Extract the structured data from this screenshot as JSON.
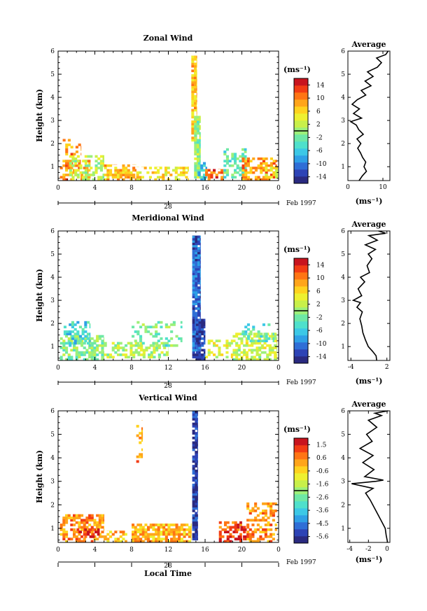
{
  "chart_data": [
    {
      "type": "heatmap",
      "title": "Zonal Wind",
      "ylabel": "Height (km)",
      "xticks": [
        "0",
        "4",
        "8",
        "12",
        "16",
        "20",
        "0"
      ],
      "yticks": [
        "1",
        "2",
        "3",
        "4",
        "5",
        "6"
      ],
      "xlim": [
        0,
        24
      ],
      "ylim": [
        0.4,
        6
      ],
      "date_label": "28",
      "month_label": "Feb 1997",
      "colorbar": {
        "label": "(ms⁻¹)",
        "ticks": [
          "14",
          "10",
          "6",
          "2",
          "-2",
          "-6",
          "-10",
          "-14"
        ],
        "range": [
          -16,
          16
        ]
      },
      "average": {
        "title": "Average",
        "xlabel": "(ms⁻¹)",
        "xticks": [
          "0",
          "10"
        ],
        "yticks": [
          "1",
          "2",
          "3",
          "4",
          "5",
          "6"
        ],
        "xlim": [
          0,
          12
        ],
        "ylim": [
          0.4,
          6
        ],
        "profile": [
          [
            3.2,
            0.4
          ],
          [
            4.1,
            0.6
          ],
          [
            5.3,
            0.8
          ],
          [
            4.6,
            1.0
          ],
          [
            5.1,
            1.2
          ],
          [
            4.2,
            1.4
          ],
          [
            3.6,
            1.6
          ],
          [
            2.8,
            1.8
          ],
          [
            3.7,
            2.0
          ],
          [
            2.6,
            2.2
          ],
          [
            4.4,
            2.4
          ],
          [
            3.1,
            2.6
          ],
          [
            2.4,
            2.8
          ],
          [
            0.8,
            2.95
          ],
          [
            3.9,
            3.1
          ],
          [
            1.6,
            3.3
          ],
          [
            3.3,
            3.5
          ],
          [
            1.2,
            3.7
          ],
          [
            2.7,
            3.9
          ],
          [
            5.1,
            4.1
          ],
          [
            3.8,
            4.3
          ],
          [
            6.6,
            4.5
          ],
          [
            4.9,
            4.7
          ],
          [
            7.2,
            4.9
          ],
          [
            5.6,
            5.1
          ],
          [
            8.4,
            5.3
          ],
          [
            9.6,
            5.5
          ],
          [
            8.2,
            5.7
          ],
          [
            10.8,
            5.85
          ],
          [
            11.5,
            6.0
          ]
        ]
      },
      "patches": [
        {
          "x0": 0.2,
          "x1": 3.5,
          "y0": 0.4,
          "y1": 1.3,
          "value": 9,
          "density": 0.55
        },
        {
          "x0": 1.2,
          "x1": 5.0,
          "y0": 0.4,
          "y1": 1.5,
          "value": 2,
          "density": 0.5
        },
        {
          "x0": 5.0,
          "x1": 8.5,
          "y0": 0.4,
          "y1": 1.1,
          "value": 7,
          "density": 0.5
        },
        {
          "x0": 8.5,
          "x1": 14.2,
          "y0": 0.4,
          "y1": 1.0,
          "value": 5,
          "density": 0.45
        },
        {
          "x0": 0.5,
          "x1": 2.5,
          "y0": 1.5,
          "y1": 2.2,
          "value": 10,
          "density": 0.25
        },
        {
          "x0": 14.5,
          "x1": 15.1,
          "y0": 2.0,
          "y1": 5.8,
          "value": 7,
          "density": 0.9
        },
        {
          "x0": 14.8,
          "x1": 15.5,
          "y0": 0.5,
          "y1": 3.2,
          "value": 0,
          "density": 0.9
        },
        {
          "x0": 15.2,
          "x1": 16.2,
          "y0": 0.4,
          "y1": 1.2,
          "value": -6,
          "density": 0.6
        },
        {
          "x0": 16.0,
          "x1": 18.0,
          "y0": 0.4,
          "y1": 0.9,
          "value": 11,
          "density": 0.5
        },
        {
          "x0": 18.0,
          "x1": 20.5,
          "y0": 0.5,
          "y1": 1.8,
          "value": -3,
          "density": 0.55
        },
        {
          "x0": 20.0,
          "x1": 23.8,
          "y0": 0.4,
          "y1": 1.4,
          "value": 9,
          "density": 0.5
        },
        {
          "x0": 22.5,
          "x1": 23.9,
          "y0": 0.5,
          "y1": 1.0,
          "value": 5,
          "density": 0.6
        }
      ]
    },
    {
      "type": "heatmap",
      "title": "Meridional Wind",
      "ylabel": "Height (km)",
      "xticks": [
        "0",
        "4",
        "8",
        "12",
        "16",
        "20",
        "0"
      ],
      "yticks": [
        "1",
        "2",
        "3",
        "4",
        "5",
        "6"
      ],
      "xlim": [
        0,
        24
      ],
      "ylim": [
        0.4,
        6
      ],
      "date_label": "28",
      "month_label": "Feb 1997",
      "colorbar": {
        "label": "(ms⁻¹)",
        "ticks": [
          "14",
          "10",
          "6",
          "2",
          "-2",
          "-6",
          "-10",
          "-14"
        ],
        "range": [
          -16,
          16
        ]
      },
      "average": {
        "title": "Average",
        "xlabel": "(ms⁻¹)",
        "xticks": [
          "-4",
          "2"
        ],
        "yticks": [
          "1",
          "2",
          "3",
          "4",
          "5",
          "6"
        ],
        "xlim": [
          -4.5,
          2.5
        ],
        "ylim": [
          0.4,
          6
        ],
        "profile": [
          [
            0.3,
            0.4
          ],
          [
            0.2,
            0.6
          ],
          [
            -0.4,
            0.8
          ],
          [
            -1.1,
            1.0
          ],
          [
            -1.6,
            1.3
          ],
          [
            -2.0,
            1.6
          ],
          [
            -2.2,
            1.9
          ],
          [
            -2.5,
            2.2
          ],
          [
            -2.1,
            2.5
          ],
          [
            -3.0,
            2.7
          ],
          [
            -2.4,
            2.9
          ],
          [
            -3.6,
            3.0
          ],
          [
            -2.2,
            3.2
          ],
          [
            -2.8,
            3.5
          ],
          [
            -1.7,
            3.8
          ],
          [
            -2.4,
            4.0
          ],
          [
            -0.9,
            4.2
          ],
          [
            -1.3,
            4.5
          ],
          [
            -0.5,
            4.8
          ],
          [
            -1.1,
            5.0
          ],
          [
            0.1,
            5.2
          ],
          [
            -1.6,
            5.4
          ],
          [
            0.4,
            5.6
          ],
          [
            -1.0,
            5.8
          ],
          [
            1.8,
            5.9
          ],
          [
            0.6,
            6.0
          ]
        ]
      },
      "patches": [
        {
          "x0": 0.2,
          "x1": 5.0,
          "y0": 0.4,
          "y1": 1.5,
          "value": -1,
          "density": 0.6
        },
        {
          "x0": 0.6,
          "x1": 3.5,
          "y0": 1.0,
          "y1": 2.1,
          "value": -5,
          "density": 0.4
        },
        {
          "x0": 5.0,
          "x1": 12.0,
          "y0": 0.5,
          "y1": 1.2,
          "value": 1,
          "density": 0.55
        },
        {
          "x0": 8.0,
          "x1": 13.5,
          "y0": 1.0,
          "y1": 2.1,
          "value": -2,
          "density": 0.3
        },
        {
          "x0": 14.6,
          "x1": 15.5,
          "y0": 0.5,
          "y1": 5.8,
          "value": -11,
          "density": 0.95
        },
        {
          "x0": 15.0,
          "x1": 16.0,
          "y0": 0.4,
          "y1": 2.2,
          "value": -13,
          "density": 0.8
        },
        {
          "x0": 16.0,
          "x1": 19.0,
          "y0": 0.5,
          "y1": 1.3,
          "value": 3,
          "density": 0.4
        },
        {
          "x0": 19.0,
          "x1": 23.8,
          "y0": 0.4,
          "y1": 1.6,
          "value": 2,
          "density": 0.55
        },
        {
          "x0": 20.0,
          "x1": 23.5,
          "y0": 1.2,
          "y1": 2.0,
          "value": -3,
          "density": 0.3
        }
      ]
    },
    {
      "type": "heatmap",
      "title": "Vertical Wind",
      "ylabel": "Height (km)",
      "xticks": [
        "0",
        "4",
        "8",
        "12",
        "16",
        "20",
        "0"
      ],
      "yticks": [
        "1",
        "2",
        "3",
        "4",
        "5",
        "6"
      ],
      "xlim": [
        0,
        24
      ],
      "ylim": [
        0.4,
        6
      ],
      "date_label": "28",
      "month_label": "Feb 1997",
      "colorbar": {
        "label": "(ms⁻¹)",
        "ticks": [
          "1.5",
          "0.6",
          "-0.6",
          "-1.6",
          "-2.6",
          "-3.6",
          "-4.5",
          "-5.6"
        ],
        "range": [
          -6,
          2
        ]
      },
      "average": {
        "title": "Average",
        "xlabel": "(ms⁻¹)",
        "xticks": [
          "-4",
          "-2",
          "0"
        ],
        "yticks": [
          "1",
          "2",
          "3",
          "4",
          "5",
          "6"
        ],
        "xlim": [
          -4.2,
          0.3
        ],
        "ylim": [
          0.4,
          6
        ],
        "profile": [
          [
            0.05,
            0.4
          ],
          [
            -0.1,
            0.7
          ],
          [
            -0.2,
            1.0
          ],
          [
            -0.6,
            1.3
          ],
          [
            -1.0,
            1.6
          ],
          [
            -1.4,
            1.9
          ],
          [
            -1.8,
            2.2
          ],
          [
            -2.3,
            2.5
          ],
          [
            -1.5,
            2.7
          ],
          [
            -3.8,
            2.9
          ],
          [
            -1.2,
            3.0
          ],
          [
            -0.4,
            3.05
          ],
          [
            -2.4,
            3.2
          ],
          [
            -1.4,
            3.5
          ],
          [
            -2.6,
            3.8
          ],
          [
            -1.5,
            4.1
          ],
          [
            -2.9,
            4.4
          ],
          [
            -1.6,
            4.7
          ],
          [
            -2.2,
            5.0
          ],
          [
            -1.1,
            5.3
          ],
          [
            -2.0,
            5.6
          ],
          [
            -0.6,
            5.8
          ],
          [
            -1.3,
            5.9
          ],
          [
            0.1,
            6.0
          ]
        ]
      },
      "patches": [
        {
          "x0": 0.2,
          "x1": 5.0,
          "y0": 0.4,
          "y1": 1.6,
          "value": 0.4,
          "density": 0.55
        },
        {
          "x0": 2.0,
          "x1": 4.5,
          "y0": 0.6,
          "y1": 1.0,
          "value": 1.5,
          "density": 0.3
        },
        {
          "x0": 5.0,
          "x1": 7.5,
          "y0": 0.4,
          "y1": 0.9,
          "value": -0.3,
          "density": 0.35
        },
        {
          "x0": 8.0,
          "x1": 14.5,
          "y0": 0.4,
          "y1": 1.2,
          "value": 0.0,
          "density": 0.8
        },
        {
          "x0": 14.6,
          "x1": 15.2,
          "y0": 0.5,
          "y1": 6.0,
          "value": -5.3,
          "density": 0.9
        },
        {
          "x0": 17.5,
          "x1": 20.0,
          "y0": 0.4,
          "y1": 1.3,
          "value": 1.0,
          "density": 0.55
        },
        {
          "x0": 19.0,
          "x1": 20.5,
          "y0": 0.5,
          "y1": 1.1,
          "value": 1.8,
          "density": 0.6
        },
        {
          "x0": 20.5,
          "x1": 23.8,
          "y0": 0.4,
          "y1": 2.1,
          "value": 0.3,
          "density": 0.4
        },
        {
          "x0": 8.5,
          "x1": 9.2,
          "y0": 3.8,
          "y1": 5.6,
          "value": 0.2,
          "density": 0.35
        }
      ]
    }
  ],
  "footer": {
    "xlabel": "Local Time"
  }
}
